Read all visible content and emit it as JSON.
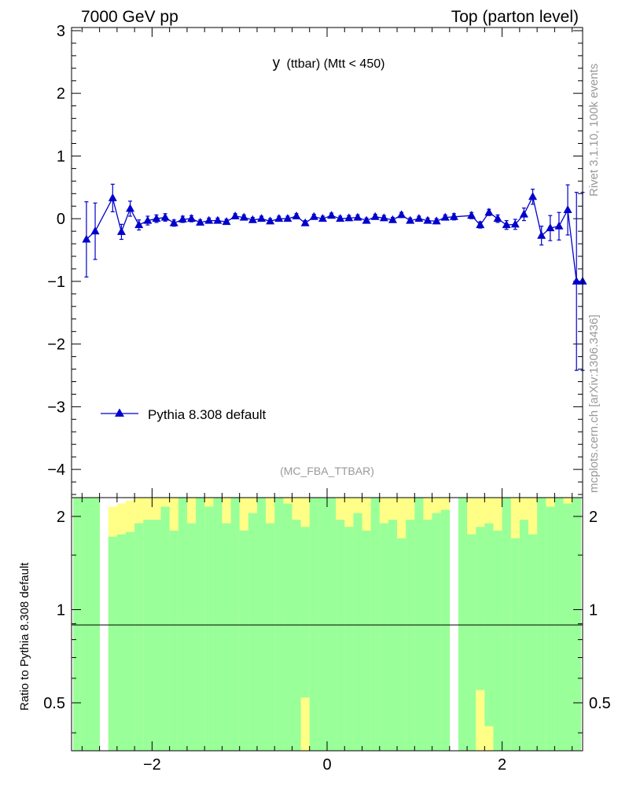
{
  "header": {
    "left": "7000 GeV pp",
    "right": "Top (parton level)"
  },
  "side_labels": {
    "rivet": "Rivet 3.1.10,  100k events",
    "mcplots": "mcplots.cern.ch [arXiv:1306.3436]"
  },
  "colors": {
    "series": "#0000cc",
    "band_inner": "#99ff99",
    "band_outer": "#ffff88",
    "axis": "#000000",
    "watermark": "#999999"
  },
  "chart_data": [
    {
      "type": "line",
      "title_main": "y",
      "title_sub": "(ttbar) (Mtt < 450)",
      "watermark": "(MC_FBA_TTBAR)",
      "xlim": [
        -2.92,
        2.92
      ],
      "ylim": [
        -4.45,
        3.05
      ],
      "yticks": [
        3,
        2,
        1,
        0,
        -1,
        -2,
        -3,
        -4
      ],
      "ytick_labels": [
        "3",
        "2",
        "1",
        "0",
        "−1",
        "−2",
        "−3",
        "−4"
      ],
      "legend_position": "bottom-left",
      "series": [
        {
          "name": "Pythia 8.308 default",
          "x": [
            -2.75,
            -2.65,
            -2.45,
            -2.35,
            -2.25,
            -2.15,
            -2.05,
            -1.95,
            -1.85,
            -1.75,
            -1.65,
            -1.55,
            -1.45,
            -1.35,
            -1.25,
            -1.15,
            -1.05,
            -0.95,
            -0.85,
            -0.75,
            -0.65,
            -0.55,
            -0.45,
            -0.35,
            -0.25,
            -0.15,
            -0.05,
            0.05,
            0.15,
            0.25,
            0.35,
            0.45,
            0.55,
            0.65,
            0.75,
            0.85,
            0.95,
            1.05,
            1.15,
            1.25,
            1.35,
            1.45,
            1.65,
            1.75,
            1.85,
            1.95,
            2.05,
            2.15,
            2.25,
            2.35,
            2.45,
            2.55,
            2.65,
            2.75,
            2.85,
            2.92
          ],
          "y": [
            -0.33,
            -0.2,
            0.33,
            -0.21,
            0.16,
            -0.1,
            -0.03,
            0.0,
            0.02,
            -0.07,
            -0.01,
            0.0,
            -0.06,
            -0.03,
            -0.03,
            -0.05,
            0.04,
            0.02,
            -0.02,
            0.0,
            -0.04,
            0.0,
            0.0,
            0.04,
            -0.07,
            0.03,
            0.0,
            0.05,
            0.0,
            0.01,
            0.02,
            -0.03,
            0.03,
            0.01,
            -0.02,
            0.06,
            -0.03,
            0.0,
            -0.03,
            -0.04,
            0.02,
            0.03,
            0.05,
            -0.1,
            0.1,
            0.0,
            -0.1,
            -0.09,
            0.07,
            0.35,
            -0.27,
            -0.15,
            -0.12,
            0.14,
            -1.0,
            -1.0
          ],
          "yerr": [
            0.6,
            0.45,
            0.22,
            0.12,
            0.12,
            0.08,
            0.07,
            0.06,
            0.06,
            0.05,
            0.05,
            0.05,
            0.04,
            0.04,
            0.04,
            0.04,
            0.04,
            0.04,
            0.04,
            0.04,
            0.04,
            0.04,
            0.04,
            0.04,
            0.04,
            0.04,
            0.04,
            0.04,
            0.04,
            0.04,
            0.04,
            0.04,
            0.04,
            0.04,
            0.04,
            0.04,
            0.04,
            0.04,
            0.04,
            0.04,
            0.04,
            0.05,
            0.05,
            0.05,
            0.05,
            0.06,
            0.07,
            0.08,
            0.1,
            0.12,
            0.15,
            0.2,
            0.22,
            0.4,
            1.42,
            1.42
          ]
        }
      ]
    },
    {
      "type": "bar",
      "ylabel": "Ratio to Pythia 8.308 default",
      "ylog": true,
      "ylim": [
        0.35,
        2.3
      ],
      "yticks": [
        0.5,
        1,
        2
      ],
      "ytick_labels": [
        "0.5",
        "1",
        "2"
      ],
      "xlim": [
        -2.92,
        2.92
      ],
      "xticks": [
        -2,
        0,
        2
      ],
      "xtick_labels": [
        "−2",
        "0",
        "2"
      ],
      "reference_line": 1,
      "bin_width": 0.1,
      "bin_centers": [
        -2.85,
        -2.75,
        -2.65,
        -2.55,
        -2.45,
        -2.35,
        -2.25,
        -2.15,
        -2.05,
        -1.95,
        -1.85,
        -1.75,
        -1.65,
        -1.55,
        -1.45,
        -1.35,
        -1.25,
        -1.15,
        -1.05,
        -0.95,
        -0.85,
        -0.75,
        -0.65,
        -0.55,
        -0.45,
        -0.35,
        -0.25,
        -0.15,
        -0.05,
        0.05,
        0.15,
        0.25,
        0.35,
        0.45,
        0.55,
        0.65,
        0.75,
        0.85,
        0.95,
        1.05,
        1.15,
        1.25,
        1.35,
        1.45,
        1.55,
        1.65,
        1.75,
        1.85,
        1.95,
        2.05,
        2.15,
        2.25,
        2.35,
        2.45,
        2.55,
        2.65,
        2.75,
        2.85
      ],
      "inner_band_upper": [
        2.3,
        2.3,
        2.3,
        2.3,
        1.72,
        1.75,
        1.78,
        1.9,
        1.95,
        1.95,
        2.15,
        1.8,
        2.3,
        1.9,
        2.3,
        2.15,
        2.3,
        1.9,
        2.3,
        1.8,
        2.05,
        2.3,
        1.9,
        2.3,
        2.2,
        1.95,
        1.85,
        2.3,
        2.3,
        2.3,
        1.95,
        1.85,
        2.05,
        1.8,
        2.3,
        1.9,
        1.95,
        1.7,
        1.95,
        2.3,
        1.95,
        2.05,
        2.1,
        2.3,
        2.3,
        1.75,
        1.85,
        1.9,
        1.8,
        2.3,
        1.7,
        1.95,
        1.75,
        2.3,
        2.15,
        2.3,
        2.2,
        2.3
      ],
      "outer_band_upper": [
        2.3,
        2.3,
        2.3,
        2.3,
        2.15,
        2.2,
        2.25,
        2.3,
        2.3,
        2.3,
        2.3,
        2.3,
        2.3,
        2.3,
        2.3,
        2.3,
        2.3,
        2.3,
        2.3,
        2.3,
        2.3,
        2.3,
        2.3,
        2.3,
        2.3,
        2.3,
        2.3,
        2.3,
        2.3,
        2.3,
        2.3,
        2.3,
        2.3,
        2.3,
        2.3,
        2.3,
        2.3,
        2.3,
        2.3,
        2.3,
        2.3,
        2.3,
        2.3,
        2.3,
        2.3,
        2.3,
        2.3,
        2.3,
        2.3,
        2.3,
        2.3,
        2.3,
        2.3,
        2.3,
        2.3,
        2.3,
        2.3,
        2.3
      ],
      "inner_band_lower": [
        0.35,
        0.35,
        0.35,
        0.35,
        0.35,
        0.35,
        0.35,
        0.35,
        0.35,
        0.35,
        0.35,
        0.35,
        0.35,
        0.35,
        0.35,
        0.35,
        0.35,
        0.35,
        0.35,
        0.35,
        0.35,
        0.35,
        0.35,
        0.35,
        0.35,
        0.35,
        0.52,
        0.35,
        0.35,
        0.35,
        0.35,
        0.35,
        0.35,
        0.35,
        0.35,
        0.35,
        0.35,
        0.35,
        0.35,
        0.35,
        0.35,
        0.35,
        0.35,
        0.35,
        0.35,
        0.35,
        0.55,
        0.42,
        0.35,
        0.35,
        0.35,
        0.35,
        0.35,
        0.35,
        0.35,
        0.35,
        0.35,
        0.35
      ],
      "outer_band_lower": [
        0.35,
        0.35,
        0.35,
        0.35,
        0.35,
        0.35,
        0.35,
        0.35,
        0.35,
        0.35,
        0.35,
        0.35,
        0.35,
        0.35,
        0.35,
        0.35,
        0.35,
        0.35,
        0.35,
        0.35,
        0.35,
        0.35,
        0.35,
        0.35,
        0.35,
        0.35,
        0.35,
        0.35,
        0.35,
        0.35,
        0.35,
        0.35,
        0.35,
        0.35,
        0.35,
        0.35,
        0.35,
        0.35,
        0.35,
        0.35,
        0.35,
        0.35,
        0.35,
        0.35,
        0.35,
        0.35,
        0.35,
        0.35,
        0.35,
        0.35,
        0.35,
        0.35,
        0.35,
        0.35,
        0.35,
        0.35,
        0.35,
        0.35
      ],
      "empty_bins": [
        -2.55,
        1.45
      ]
    }
  ]
}
